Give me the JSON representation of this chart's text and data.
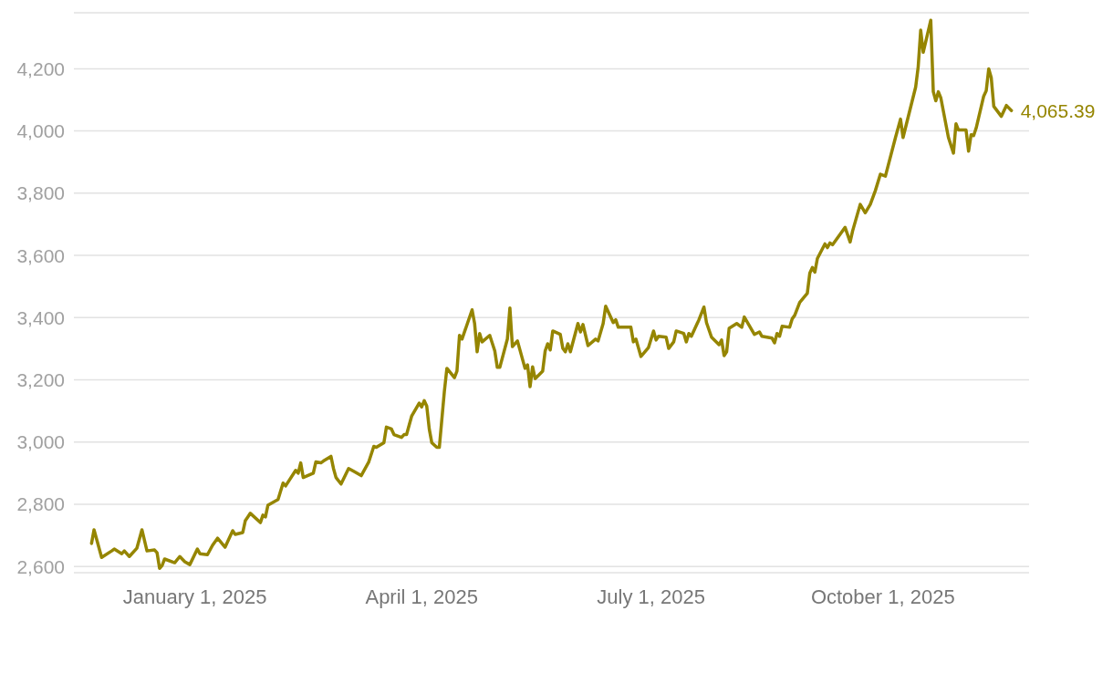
{
  "chart_data": {
    "type": "line",
    "color": "#958500",
    "grid": "y",
    "x": [
      "2024-11-21",
      "2024-11-22",
      "2024-11-25",
      "2024-11-29",
      "2024-11-30",
      "2024-12-03",
      "2024-12-04",
      "2024-12-06",
      "2024-12-09",
      "2024-12-11",
      "2024-12-13",
      "2024-12-16",
      "2024-12-17",
      "2024-12-18",
      "2024-12-19",
      "2024-12-20",
      "2024-12-24",
      "2024-12-26",
      "2024-12-28",
      "2024-12-30",
      "2025-01-02",
      "2025-01-03",
      "2025-01-06",
      "2025-01-08",
      "2025-01-10",
      "2025-01-13",
      "2025-01-16",
      "2025-01-17",
      "2025-01-20",
      "2025-01-21",
      "2025-01-22",
      "2025-01-23",
      "2025-01-27",
      "2025-01-28",
      "2025-01-29",
      "2025-01-30",
      "2025-02-03",
      "2025-02-05",
      "2025-02-06",
      "2025-02-10",
      "2025-02-11",
      "2025-02-12",
      "2025-02-13",
      "2025-02-17",
      "2025-02-18",
      "2025-02-20",
      "2025-02-21",
      "2025-02-24",
      "2025-02-25",
      "2025-02-26",
      "2025-02-28",
      "2025-03-03",
      "2025-03-05",
      "2025-03-08",
      "2025-03-11",
      "2025-03-13",
      "2025-03-14",
      "2025-03-17",
      "2025-03-18",
      "2025-03-20",
      "2025-03-21",
      "2025-03-24",
      "2025-03-25",
      "2025-03-26",
      "2025-03-28",
      "2025-03-31",
      "2025-04-01",
      "2025-04-02",
      "2025-04-03",
      "2025-04-04",
      "2025-04-05",
      "2025-04-07",
      "2025-04-08",
      "2025-04-10",
      "2025-04-11",
      "2025-04-14",
      "2025-04-15",
      "2025-04-16",
      "2025-04-17",
      "2025-04-21",
      "2025-04-22",
      "2025-04-23",
      "2025-04-24",
      "2025-04-25",
      "2025-04-28",
      "2025-04-30",
      "2025-05-01",
      "2025-05-02",
      "2025-05-05",
      "2025-05-06",
      "2025-05-07",
      "2025-05-09",
      "2025-05-12",
      "2025-05-13",
      "2025-05-14",
      "2025-05-15",
      "2025-05-16",
      "2025-05-19",
      "2025-05-20",
      "2025-05-21",
      "2025-05-22",
      "2025-05-23",
      "2025-05-26",
      "2025-05-27",
      "2025-05-28",
      "2025-05-29",
      "2025-05-30",
      "2025-06-02",
      "2025-06-03",
      "2025-06-04",
      "2025-06-06",
      "2025-06-09",
      "2025-06-10",
      "2025-06-12",
      "2025-06-13",
      "2025-06-16",
      "2025-06-17",
      "2025-06-18",
      "2025-06-23",
      "2025-06-24",
      "2025-06-25",
      "2025-06-27",
      "2025-06-30",
      "2025-07-02",
      "2025-07-03",
      "2025-07-04",
      "2025-07-07",
      "2025-07-08",
      "2025-07-10",
      "2025-07-11",
      "2025-07-14",
      "2025-07-15",
      "2025-07-16",
      "2025-07-17",
      "2025-07-20",
      "2025-07-22",
      "2025-07-23",
      "2025-07-25",
      "2025-07-28",
      "2025-07-29",
      "2025-07-30",
      "2025-07-31",
      "2025-08-01",
      "2025-08-04",
      "2025-08-06",
      "2025-08-07",
      "2025-08-11",
      "2025-08-13",
      "2025-08-14",
      "2025-08-18",
      "2025-08-19",
      "2025-08-20",
      "2025-08-21",
      "2025-08-22",
      "2025-08-25",
      "2025-08-26",
      "2025-08-27",
      "2025-08-29",
      "2025-09-01",
      "2025-09-02",
      "2025-09-03",
      "2025-09-04",
      "2025-09-05",
      "2025-09-08",
      "2025-09-09",
      "2025-09-10",
      "2025-09-11",
      "2025-09-16",
      "2025-09-18",
      "2025-09-19",
      "2025-09-22",
      "2025-09-24",
      "2025-09-26",
      "2025-09-28",
      "2025-09-30",
      "2025-10-02",
      "2025-10-06",
      "2025-10-08",
      "2025-10-09",
      "2025-10-14",
      "2025-10-15",
      "2025-10-16",
      "2025-10-17",
      "2025-10-20",
      "2025-10-21",
      "2025-10-22",
      "2025-10-23",
      "2025-10-24",
      "2025-10-27",
      "2025-10-29",
      "2025-10-30",
      "2025-10-31",
      "2025-11-03",
      "2025-11-04",
      "2025-11-05",
      "2025-11-06",
      "2025-11-07",
      "2025-11-10",
      "2025-11-11",
      "2025-11-12",
      "2025-11-13",
      "2025-11-14",
      "2025-11-17",
      "2025-11-19",
      "2025-11-21"
    ],
    "values": [
      2674,
      2718,
      2629,
      2650,
      2656,
      2641,
      2650,
      2632,
      2659,
      2718,
      2650,
      2653,
      2644,
      2594,
      2603,
      2624,
      2612,
      2632,
      2615,
      2606,
      2656,
      2641,
      2638,
      2668,
      2691,
      2662,
      2715,
      2703,
      2709,
      2747,
      2759,
      2771,
      2741,
      2765,
      2759,
      2797,
      2815,
      2868,
      2859,
      2909,
      2900,
      2933,
      2886,
      2900,
      2936,
      2933,
      2939,
      2954,
      2915,
      2886,
      2865,
      2915,
      2906,
      2892,
      2936,
      2986,
      2983,
      2998,
      3048,
      3042,
      3024,
      3015,
      3024,
      3024,
      3083,
      3125,
      3113,
      3133,
      3116,
      3042,
      2998,
      2983,
      2983,
      3163,
      3237,
      3207,
      3228,
      3343,
      3331,
      3425,
      3381,
      3290,
      3349,
      3322,
      3343,
      3293,
      3240,
      3240,
      3331,
      3431,
      3307,
      3325,
      3237,
      3248,
      3178,
      3242,
      3204,
      3228,
      3293,
      3316,
      3296,
      3357,
      3346,
      3301,
      3290,
      3316,
      3290,
      3381,
      3354,
      3378,
      3310,
      3331,
      3325,
      3381,
      3437,
      3384,
      3393,
      3369,
      3369,
      3322,
      3331,
      3275,
      3304,
      3357,
      3328,
      3340,
      3337,
      3301,
      3322,
      3357,
      3349,
      3322,
      3349,
      3340,
      3393,
      3434,
      3384,
      3337,
      3313,
      3328,
      3278,
      3290,
      3366,
      3381,
      3369,
      3402,
      3346,
      3354,
      3340,
      3334,
      3319,
      3349,
      3340,
      3372,
      3369,
      3396,
      3407,
      3449,
      3478,
      3543,
      3561,
      3546,
      3590,
      3637,
      3625,
      3640,
      3634,
      3690,
      3643,
      3679,
      3764,
      3737,
      3764,
      3808,
      3861,
      3855,
      3979,
      4038,
      3979,
      4141,
      4206,
      4324,
      4253,
      4356,
      4126,
      4097,
      4126,
      4106,
      3979,
      3929,
      4023,
      4003,
      4003,
      3935,
      3988,
      3985,
      4009,
      4112,
      4129,
      4200,
      4171,
      4079,
      4047,
      4082,
      4065.39
    ],
    "xlim": [
      "2024-11-14",
      "2025-11-28"
    ],
    "xticks": [
      {
        "value": "2025-01-01",
        "label": "January 1, 2025"
      },
      {
        "value": "2025-04-01",
        "label": "April 1, 2025"
      },
      {
        "value": "2025-07-01",
        "label": "July 1, 2025"
      },
      {
        "value": "2025-10-01",
        "label": "October 1, 2025"
      }
    ],
    "ylim": [
      2580,
      4380
    ],
    "yticks": [
      {
        "value": 2600,
        "label": "2,600"
      },
      {
        "value": 2800,
        "label": "2,800"
      },
      {
        "value": 3000,
        "label": "3,000"
      },
      {
        "value": 3200,
        "label": "3,200"
      },
      {
        "value": 3400,
        "label": "3,400"
      },
      {
        "value": 3600,
        "label": "3,600"
      },
      {
        "value": 3800,
        "label": "3,800"
      },
      {
        "value": 4000,
        "label": "4,000"
      },
      {
        "value": 4200,
        "label": "4,200"
      }
    ],
    "annotations": [
      {
        "text": "4,065.39",
        "x": "2025-11-21",
        "y": 4065.39
      }
    ]
  }
}
